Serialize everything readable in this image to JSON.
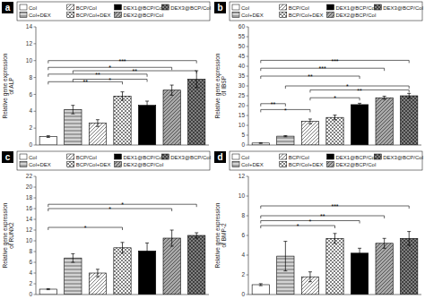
{
  "chart_data": [
    {
      "type": "bar",
      "title": "a",
      "y_label": "Relative gene expression\nof ALP",
      "categories": [
        "Col",
        "Col+DEX",
        "BCP/Col",
        "BCP/Col+DEX",
        "DEX1@BCP/Col",
        "DEX2@BCP/Col",
        "DEX3@BCP/Col"
      ],
      "values": [
        1.0,
        4.2,
        2.6,
        5.8,
        4.7,
        6.5,
        7.8
      ],
      "errors": [
        0.1,
        0.5,
        0.4,
        0.5,
        0.5,
        0.6,
        1.0
      ],
      "colors": [
        "white",
        "lightgray",
        "white",
        "white",
        "black",
        "darkgray",
        "gray"
      ],
      "ylim": [
        0,
        14
      ],
      "yticks": [
        0,
        2,
        4,
        6,
        8,
        10,
        12,
        14
      ],
      "annotations": [
        {
          "label": "***",
          "from": "Col",
          "to": "DEX3@BCP/Col",
          "y": 10.0
        },
        {
          "label": "*",
          "from": "Col",
          "to": "DEX2@BCP/Col",
          "y": 9.2
        },
        {
          "label": "**",
          "from": "Col",
          "to": "DEX1@BCP/Col",
          "y": 8.4
        },
        {
          "label": "**",
          "from": "Col",
          "to": "BCP/Col+DEX",
          "y": 7.5
        },
        {
          "label": "**",
          "from": "Col+DEX",
          "to": "DEX3@BCP/Col",
          "y": 8.8
        },
        {
          "label": "*",
          "from": "Col+DEX",
          "to": "DEX1@BCP/Col",
          "y": 7.8
        }
      ],
      "legend": "top",
      "grid": false,
      "tick_labels": "y"
    },
    {
      "type": "bar",
      "title": "b",
      "y_label": "Relative gene expression\nof IBSP",
      "categories": [
        "Col",
        "Col+DEX",
        "BCP/Col",
        "BCP/Col+DEX",
        "DEX1@BCP/Col",
        "DEX2@BCP/Col",
        "DEX3@BCP/Col"
      ],
      "values": [
        1.0,
        4.5,
        12.0,
        14.0,
        20.5,
        24.0,
        25.0
      ],
      "errors": [
        0.2,
        0.3,
        1.2,
        1.2,
        0.7,
        0.8,
        1.2
      ],
      "colors": [
        "white",
        "lightgray",
        "white",
        "white",
        "black",
        "darkgray",
        "gray"
      ],
      "ylim": [
        0,
        60
      ],
      "yticks": [
        0,
        5,
        10,
        15,
        20,
        25,
        30,
        35,
        40,
        45,
        50,
        55,
        60
      ],
      "annotations": [
        {
          "label": "***",
          "from": "Col",
          "to": "DEX3@BCP/Col",
          "y": 43
        },
        {
          "label": "***",
          "from": "Col",
          "to": "DEX2@BCP/Col",
          "y": 39
        },
        {
          "label": "**",
          "from": "Col",
          "to": "DEX1@BCP/Col",
          "y": 35
        },
        {
          "label": "**",
          "from": "Col",
          "to": "Col+DEX",
          "y": 21
        },
        {
          "label": "*",
          "from": "Col+DEX",
          "to": "DEX3@BCP/Col",
          "y": 30
        },
        {
          "label": "**",
          "from": "BCP/Col",
          "to": "DEX3@BCP/Col",
          "y": 28
        },
        {
          "label": "*",
          "from": "BCP/Col",
          "to": "DEX1@BCP/Col",
          "y": 24
        },
        {
          "label": "*",
          "from": "Col",
          "to": "BCP/Col",
          "y": 18
        }
      ],
      "legend": "top",
      "grid": false,
      "tick_labels": "y"
    },
    {
      "type": "bar",
      "title": "c",
      "y_label": "Relative gene expression\nof RUNX2",
      "categories": [
        "Col",
        "Col+DEX",
        "BCP/Col",
        "BCP/Col+DEX",
        "DEX1@BCP/Col",
        "DEX2@BCP/Col",
        "DEX3@BCP/Col"
      ],
      "values": [
        1.0,
        6.8,
        4.0,
        8.7,
        8.1,
        10.5,
        11.0
      ],
      "errors": [
        0.1,
        0.8,
        0.7,
        1.0,
        1.5,
        1.5,
        0.5
      ],
      "colors": [
        "white",
        "lightgray",
        "white",
        "white",
        "black",
        "darkgray",
        "gray"
      ],
      "ylim": [
        0,
        22
      ],
      "yticks": [
        0,
        2,
        4,
        6,
        8,
        10,
        12,
        14,
        16,
        18,
        20,
        22
      ],
      "annotations": [
        {
          "label": "*",
          "from": "Col",
          "to": "BCP/Col+DEX",
          "y": 12.5
        },
        {
          "label": "*",
          "from": "Col",
          "to": "DEX2@BCP/Col",
          "y": 16.0
        },
        {
          "label": "*",
          "from": "Col",
          "to": "DEX3@BCP/Col",
          "y": 16.8
        }
      ],
      "legend": "top",
      "grid": false,
      "tick_labels": "y"
    },
    {
      "type": "bar",
      "title": "d",
      "y_label": "Relative gene expression\nof BMP-2",
      "categories": [
        "Col",
        "Col+DEX",
        "BCP/Col",
        "BCP/Col+DEX",
        "DEX1@BCP/Col",
        "DEX2@BCP/Col",
        "DEX3@BCP/Col"
      ],
      "values": [
        1.0,
        3.9,
        1.8,
        5.7,
        4.2,
        5.2,
        5.7
      ],
      "errors": [
        0.1,
        1.5,
        0.5,
        0.5,
        0.5,
        0.5,
        0.7
      ],
      "colors": [
        "white",
        "lightgray",
        "white",
        "white",
        "black",
        "darkgray",
        "gray"
      ],
      "ylim": [
        0,
        12
      ],
      "yticks": [
        0,
        2,
        4,
        6,
        8,
        10,
        12
      ],
      "annotations": [
        {
          "label": "*",
          "from": "Col",
          "to": "BCP/Col+DEX",
          "y": 7.0
        },
        {
          "label": "**",
          "from": "Col",
          "to": "DEX2@BCP/Col",
          "y": 8.0
        },
        {
          "label": "***",
          "from": "Col",
          "to": "DEX3@BCP/Col",
          "y": 9.0
        },
        {
          "label": "*",
          "from": "Col",
          "to": "DEX1@BCP/Col",
          "y": 7.5
        }
      ],
      "legend": "top",
      "grid": false,
      "tick_labels": "y"
    }
  ]
}
